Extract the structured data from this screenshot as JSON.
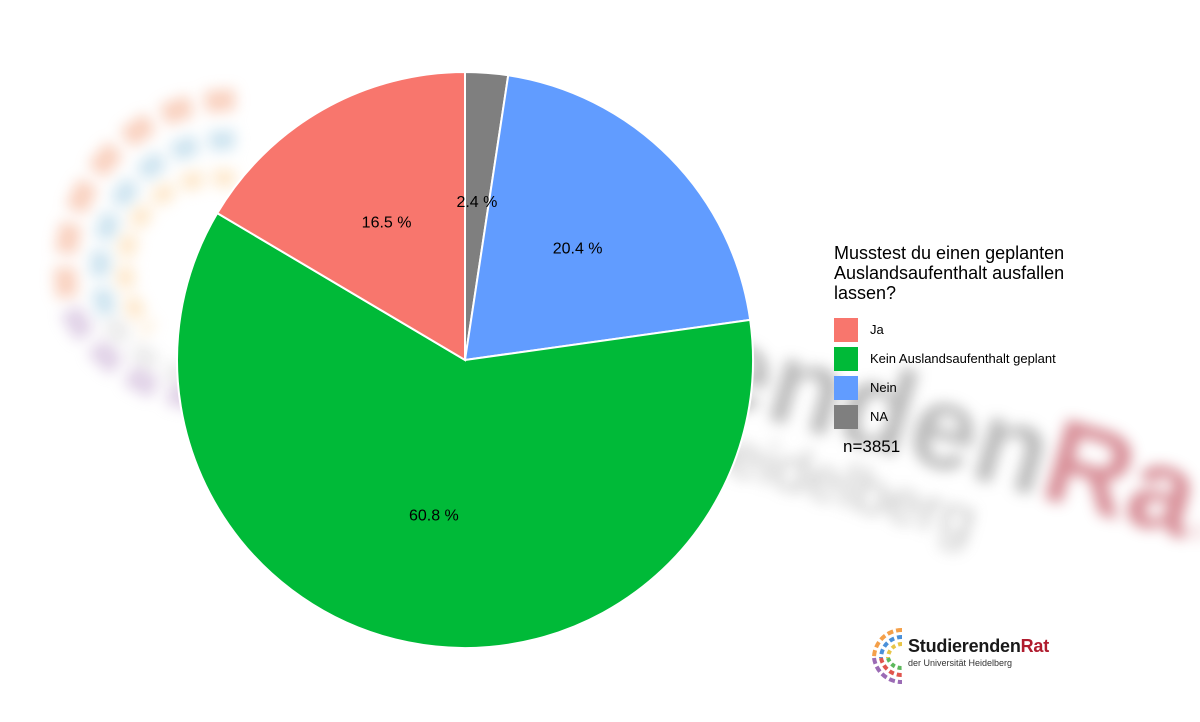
{
  "chart_data": {
    "type": "pie",
    "slices": [
      {
        "name": "NA",
        "value": 2.4,
        "label": "2.4 %",
        "color": "#7f7f7f"
      },
      {
        "name": "Nein",
        "value": 20.4,
        "label": "20.4 %",
        "color": "#619cff"
      },
      {
        "name": "Kein Auslandsaufenthalt geplant",
        "value": 60.8,
        "label": "60.8 %",
        "color": "#00ba38"
      },
      {
        "name": "Ja",
        "value": 16.5,
        "label": "16.5 %",
        "color": "#f8766d"
      }
    ]
  },
  "legend": {
    "title": [
      "Musstest du einen geplanten",
      "Auslandsaufenthalt ausfallen",
      "lassen?"
    ],
    "items": [
      {
        "label": "Ja",
        "color": "#f8766d"
      },
      {
        "label": "Kein Auslandsaufenthalt geplant",
        "color": "#00ba38"
      },
      {
        "label": "Nein",
        "color": "#619cff"
      },
      {
        "label": "NA",
        "color": "#7f7f7f"
      }
    ]
  },
  "sample_size": "n=3851",
  "logo": {
    "title_a": "Studierenden",
    "title_b": "Rat",
    "subtitle": "der Universität Heidelberg"
  },
  "watermark": {
    "line1_a": "Studierenden",
    "line1_b": "Rat",
    "line2": "der Universität Heidelberg"
  }
}
